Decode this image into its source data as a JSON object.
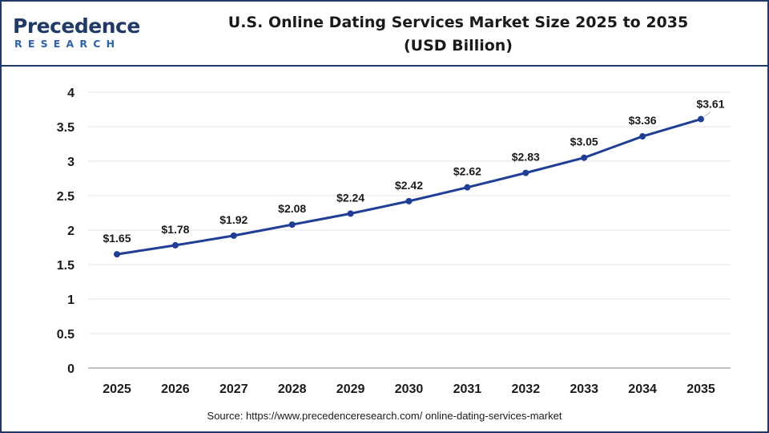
{
  "logo": {
    "top_text": "Precedence",
    "bottom_text": "RESEARCH"
  },
  "title": {
    "line1": "U.S. Online Dating Services Market Size 2025 to 2035",
    "line2": "(USD Billion)"
  },
  "source": "Source: https://www.precedenceresearch.com/ online-dating-services-market",
  "colors": {
    "line": "#1f3f96",
    "marker": "#1f3f96",
    "border": "#1f3a68",
    "grid": "#e6e6e6",
    "axis": "#9a9a9a"
  },
  "chart_data": {
    "type": "line",
    "title": "U.S. Online Dating Services Market Size 2025 to 2035 (USD Billion)",
    "xlabel": "",
    "ylabel": "",
    "categories": [
      "2025",
      "2026",
      "2027",
      "2028",
      "2029",
      "2030",
      "2031",
      "2032",
      "2033",
      "2034",
      "2035"
    ],
    "series": [
      {
        "values": [
          1.65,
          1.78,
          1.92,
          2.08,
          2.24,
          2.42,
          2.62,
          2.83,
          3.05,
          3.36,
          3.61
        ],
        "labels": [
          "$1.65",
          "$1.78",
          "$1.92",
          "$2.08",
          "$2.24",
          "$2.42",
          "$2.62",
          "$2.83",
          "$3.05",
          "$3.36",
          "$3.61"
        ]
      }
    ],
    "ylim": [
      0,
      4
    ],
    "yticks": [
      "0",
      "0.5",
      "1",
      "1.5",
      "2",
      "2.5",
      "3",
      "3.5",
      "4"
    ],
    "grid": true,
    "legend": "none"
  }
}
